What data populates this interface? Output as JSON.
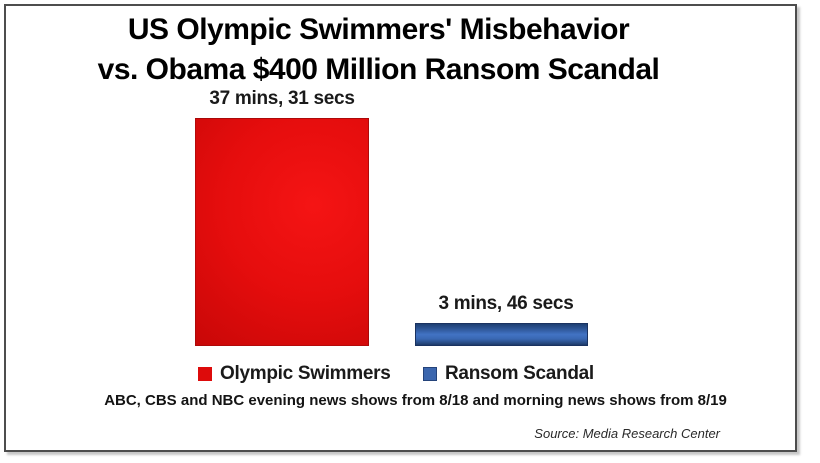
{
  "title": {
    "line1": "US Olympic Swimmers' Misbehavior",
    "line2": "vs. Obama $400 Million Ransom Scandal"
  },
  "chart_data": {
    "type": "bar",
    "title": "US Olympic Swimmers' Misbehavior vs. Obama $400 Million Ransom Scandal",
    "categories": [
      "Olympic Swimmers",
      "Ransom Scandal"
    ],
    "values_seconds": [
      2251,
      226
    ],
    "value_labels": [
      "37 mins, 31 secs",
      "3 mins, 46 secs"
    ],
    "unit": "airtime (minutes, seconds)",
    "series_colors": [
      "#dd0b0b",
      "#3b66ae"
    ],
    "legend": {
      "position": "bottom",
      "entries": [
        {
          "label": "Olympic Swimmers",
          "color": "#dd0b0b"
        },
        {
          "label": "Ransom Scandal",
          "color": "#3b66ae"
        }
      ]
    },
    "axes_visible": false,
    "grid": false,
    "footnote": "ABC, CBS and NBC evening news shows from 8/18 and morning news shows from 8/19",
    "source": "Source: Media Research Center"
  }
}
